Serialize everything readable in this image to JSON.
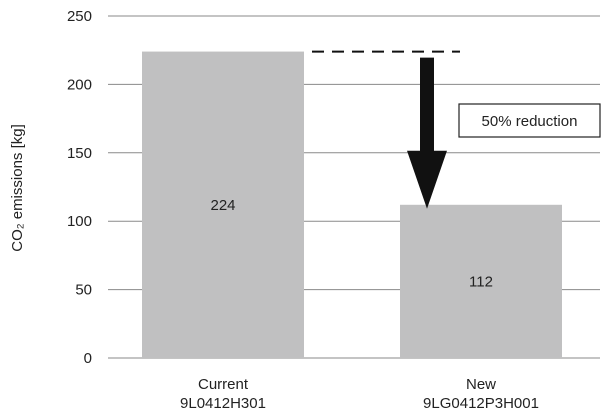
{
  "chart_data": {
    "type": "bar",
    "categories": [
      {
        "line1": "Current",
        "line2": "9L0412H301"
      },
      {
        "line1": "New",
        "line2": "9LG0412P3H001"
      }
    ],
    "values": [
      224,
      112
    ],
    "value_labels": [
      "224",
      "112"
    ],
    "ylabel": "CO₂ emissions [kg]",
    "ylim": [
      0,
      250
    ],
    "yticks": [
      0,
      50,
      100,
      150,
      200,
      250
    ],
    "grid": true,
    "bar_color": "#c0c0c1",
    "annotation": {
      "text": "50% reduction",
      "from_value": 224,
      "to_value": 112
    }
  }
}
